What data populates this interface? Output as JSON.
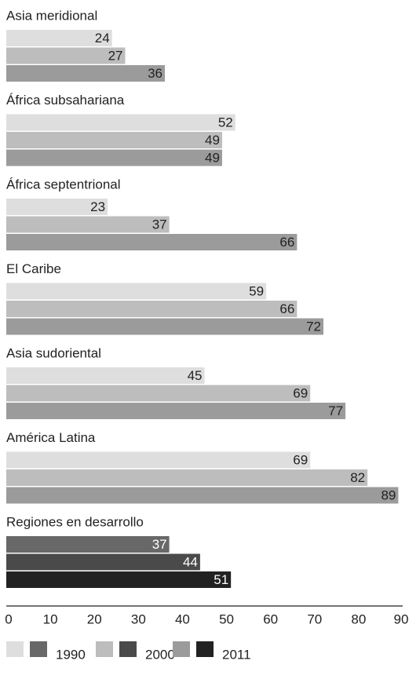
{
  "chart_data": {
    "type": "bar",
    "orientation": "horizontal",
    "title": "",
    "xlabel": "",
    "ylabel": "",
    "xlim": [
      0,
      90
    ],
    "x_ticks": [
      0,
      10,
      20,
      30,
      40,
      50,
      60,
      70,
      80,
      90
    ],
    "grid": false,
    "legend_position": "bottom",
    "series_names": [
      "1990",
      "2000",
      "2011"
    ],
    "categories": [
      {
        "label": "Asia meridional",
        "values": [
          24,
          27,
          36
        ]
      },
      {
        "label": "África subsahariana",
        "values": [
          52,
          49,
          49
        ]
      },
      {
        "label": "África septentrional",
        "values": [
          23,
          37,
          66
        ]
      },
      {
        "label": "El Caribe",
        "values": [
          59,
          66,
          72
        ]
      },
      {
        "label": "Asia sudoriental",
        "values": [
          45,
          69,
          77
        ]
      },
      {
        "label": "América Latina",
        "values": [
          69,
          82,
          89
        ]
      },
      {
        "label": "Regiones en desarrollo",
        "values": [
          37,
          44,
          51
        ],
        "highlight": true
      }
    ],
    "colors": {
      "region": [
        "#dedede",
        "#bdbdbd",
        "#9b9b9b"
      ],
      "developing": [
        "#686868",
        "#4a4a4a",
        "#222222"
      ],
      "text_on_light": "#222222",
      "text_on_dark": "#ffffff",
      "axis": "#222222"
    },
    "legend": [
      {
        "label": "1990",
        "colors": [
          "#dedede",
          "#686868"
        ]
      },
      {
        "label": "2000",
        "colors": [
          "#bdbdbd",
          "#4a4a4a"
        ]
      },
      {
        "label": "2011",
        "colors": [
          "#9b9b9b",
          "#222222"
        ]
      }
    ]
  }
}
